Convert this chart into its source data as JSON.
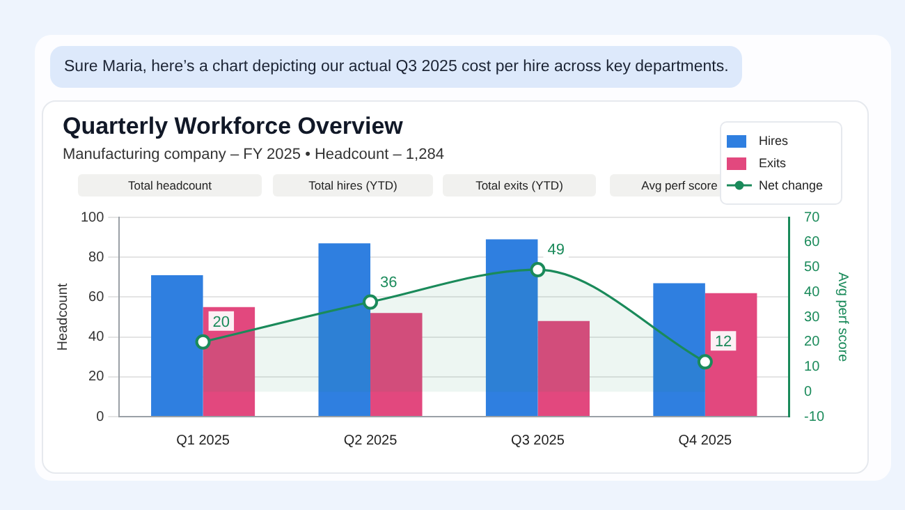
{
  "chart_data": {
    "type": "bar",
    "title": "Quarterly Workforce Overview",
    "subtitle": "Manufacturing company – FY 2025 • Headcount – 1,284",
    "annotations": [
      "Sure Maria, here’s a chart depicting our actual Q3 2025 cost per hire across key departments.",
      "Total headcount",
      "Total hires (YTD)",
      "Total exits (YTD)",
      "Avg perf score"
    ],
    "categories": [
      "Q1 2025",
      "Q2 2025",
      "Q3 2025",
      "Q4 2025"
    ],
    "series": [
      {
        "name": "Hires",
        "color": "#2f7fe0",
        "values": [
          71,
          87,
          89,
          67
        ]
      },
      {
        "name": "Exits",
        "color": "#e2487e",
        "values": [
          55,
          52,
          48,
          62
        ]
      },
      {
        "name": "Net change",
        "type": "area",
        "axis": "y2",
        "color": "#1a8a5a",
        "values": [
          20,
          36,
          49,
          12
        ],
        "value_labels": [
          "20",
          "36",
          "49",
          "12"
        ]
      }
    ],
    "ylabel": "Headcount",
    "y2label": "Avg perf score",
    "ylim": [
      0,
      100
    ],
    "yticks": [
      0,
      20,
      40,
      60,
      80,
      100
    ],
    "y2lim": [
      -10,
      70
    ],
    "y2ticks": [
      -10,
      0,
      10,
      20,
      30,
      40,
      50,
      60,
      70
    ],
    "grid": "y",
    "legend": "top right",
    "marker": "circle"
  }
}
